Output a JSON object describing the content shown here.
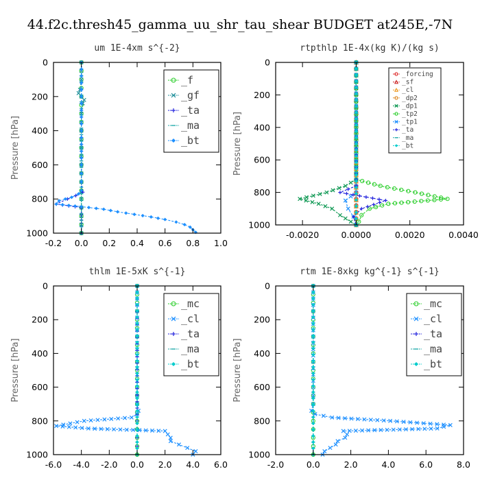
{
  "figure": {
    "title": "44.f2c.thresh45_gamma_uu_shr_tau_shear  BUDGET at245E,-7N"
  },
  "chart_data": [
    {
      "type": "line",
      "title": "um  1E-4xm s^{-2}",
      "xlabel": "",
      "ylabel": "Pressure [hPa]",
      "xlim": [
        -0.2,
        1.0
      ],
      "ylim": [
        1000,
        0
      ],
      "xticks": [
        "-0.2",
        "0.0",
        "0.2",
        "0.4",
        "0.6",
        "0.8",
        "1.0"
      ],
      "xtick_values": [
        -0.2,
        0,
        0.2,
        0.4,
        0.6,
        0.8,
        1.0
      ],
      "yticks": [
        "0",
        "200",
        "400",
        "600",
        "800",
        "1000"
      ],
      "ytick_values": [
        0,
        200,
        400,
        600,
        800,
        1000
      ],
      "legend": {
        "placement": "top-right",
        "size": "large"
      },
      "series": [
        {
          "name": "_f",
          "color": "#22cc22",
          "marker": "circle",
          "y": [
            0,
            100,
            200,
            300,
            400,
            500,
            600,
            700,
            800,
            900,
            1000
          ],
          "x": [
            0,
            0,
            0,
            0,
            0,
            0,
            0,
            0,
            0,
            0,
            0
          ]
        },
        {
          "name": "_gf",
          "color": "#1f8f9a",
          "marker": "x",
          "y": [
            0,
            100,
            160,
            180,
            200,
            220,
            240,
            300,
            400,
            500,
            600,
            700,
            760,
            800,
            850,
            900,
            1000
          ],
          "x": [
            0,
            0,
            -0.01,
            -0.02,
            0,
            0.02,
            0.01,
            0,
            0,
            0,
            0,
            0,
            0,
            0,
            0,
            0,
            0
          ]
        },
        {
          "name": "_ta",
          "color": "#2222dd",
          "marker": "plus",
          "y": [
            0,
            200,
            400,
            600,
            700,
            760,
            780,
            800,
            830,
            850,
            1000
          ],
          "x": [
            0,
            0,
            0,
            0,
            0,
            0.01,
            -0.04,
            -0.1,
            -0.18,
            0,
            0
          ]
        },
        {
          "name": "_ma",
          "color": "#22aaaa",
          "marker": "dash",
          "y": [
            0,
            500,
            1000
          ],
          "x": [
            0,
            0,
            0
          ]
        },
        {
          "name": "_bt",
          "color": "#1e90ff",
          "marker": "diamond",
          "y": [
            0,
            200,
            400,
            600,
            700,
            750,
            770,
            790,
            810,
            830,
            845,
            860,
            875,
            890,
            905,
            920,
            935,
            950,
            965,
            980,
            995
          ],
          "x": [
            0,
            0,
            0,
            0,
            0,
            0,
            -0.02,
            -0.07,
            -0.16,
            -0.18,
            0,
            0.16,
            0.26,
            0.38,
            0.5,
            0.6,
            0.68,
            0.74,
            0.78,
            0.8,
            0.82
          ]
        }
      ]
    },
    {
      "type": "line",
      "title": "rtpthlp  1E-4x(kg K)/(kg s)",
      "xlabel": "",
      "ylabel": "Pressure [hPa]",
      "xlim": [
        -0.003,
        0.004
      ],
      "ylim": [
        1000,
        0
      ],
      "xticks": [
        "-0.0020",
        "0.0000",
        "0.0020",
        "0.0040"
      ],
      "xtick_values": [
        -0.002,
        0,
        0.002,
        0.004
      ],
      "yticks": [
        "0",
        "200",
        "400",
        "600",
        "800",
        "1000"
      ],
      "ytick_values": [
        0,
        200,
        400,
        600,
        800,
        1000
      ],
      "legend": {
        "placement": "top-right",
        "size": "small"
      },
      "series": [
        {
          "name": "_forcing",
          "color": "#dd2222",
          "marker": "circle",
          "y": [
            0,
            200,
            400,
            600,
            800,
            1000
          ],
          "x": [
            0,
            0,
            0,
            0,
            0,
            0
          ]
        },
        {
          "name": "_sf",
          "color": "#cc2222",
          "marker": "triangle",
          "y": [
            0,
            1000
          ],
          "x": [
            0,
            0
          ]
        },
        {
          "name": "_cl",
          "color": "#ee9922",
          "marker": "triangle",
          "y": [
            0,
            1000
          ],
          "x": [
            0,
            0
          ]
        },
        {
          "name": "_dp2",
          "color": "#dd8822",
          "marker": "circle",
          "y": [
            0,
            1000
          ],
          "x": [
            0,
            0
          ]
        },
        {
          "name": "_dp1",
          "color": "#119955",
          "marker": "x",
          "y": [
            0,
            720,
            760,
            800,
            840,
            870,
            900,
            940,
            980,
            1000
          ],
          "x": [
            0,
            0,
            -0.0004,
            -0.0011,
            -0.0021,
            -0.0014,
            -0.0009,
            -0.0006,
            -0.0002,
            0
          ]
        },
        {
          "name": "_tp2",
          "color": "#22cc22",
          "marker": "circle",
          "y": [
            0,
            720,
            760,
            800,
            840,
            870,
            900,
            940,
            980,
            1000
          ],
          "x": [
            0,
            0,
            0.0009,
            0.0022,
            0.0034,
            0.0012,
            0.0005,
            0.0002,
            0.0001,
            0
          ]
        },
        {
          "name": "_tp1",
          "color": "#1e90ff",
          "marker": "x",
          "y": [
            0,
            800,
            850,
            900,
            950,
            1000
          ],
          "x": [
            0,
            0,
            -0.0004,
            -0.0003,
            -0.0001,
            0
          ]
        },
        {
          "name": "_ta",
          "color": "#2222dd",
          "marker": "plus",
          "y": [
            0,
            760,
            800,
            850,
            900,
            950,
            1000
          ],
          "x": [
            0,
            0,
            -0.0006,
            0.0011,
            0.0002,
            -0.0001,
            0
          ]
        },
        {
          "name": "_ma",
          "color": "#22aaaa",
          "marker": "dash",
          "y": [
            0,
            1000
          ],
          "x": [
            0,
            0
          ]
        },
        {
          "name": "_bt",
          "color": "#00cccc",
          "marker": "diamond",
          "y": [
            0,
            1000
          ],
          "x": [
            0,
            0
          ]
        }
      ]
    },
    {
      "type": "line",
      "title": "thlm  1E-5xK s^{-1}",
      "xlabel": "",
      "ylabel": "Pressure [hPa]",
      "xlim": [
        -6.0,
        6.0
      ],
      "ylim": [
        1000,
        0
      ],
      "xticks": [
        "-6.0",
        "-4.0",
        "-2.0",
        "0.0",
        "2.0",
        "4.0",
        "6.0"
      ],
      "xtick_values": [
        -6,
        -4,
        -2,
        0,
        2,
        4,
        6
      ],
      "yticks": [
        "0",
        "200",
        "400",
        "600",
        "800",
        "1000"
      ],
      "ytick_values": [
        0,
        200,
        400,
        600,
        800,
        1000
      ],
      "legend": {
        "placement": "top-right",
        "size": "large"
      },
      "series": [
        {
          "name": "_mc",
          "color": "#22cc22",
          "marker": "circle",
          "y": [
            0,
            100,
            200,
            300,
            400,
            500,
            600,
            700,
            800,
            900,
            1000
          ],
          "x": [
            0,
            0,
            0,
            0,
            0,
            0,
            0,
            0,
            0,
            0,
            0
          ]
        },
        {
          "name": "_cl",
          "color": "#1e90ff",
          "marker": "x",
          "y": [
            0,
            600,
            700,
            740,
            760,
            780,
            800,
            830,
            845,
            860,
            880,
            900,
            920,
            940,
            960,
            980,
            1000
          ],
          "x": [
            0,
            0,
            0,
            0.1,
            0,
            -0.4,
            -3.8,
            -5.8,
            -3.5,
            2.0,
            2.2,
            2.4,
            2.4,
            3.0,
            3.6,
            4.2,
            4.0
          ]
        },
        {
          "name": "_ta",
          "color": "#2222dd",
          "marker": "plus",
          "y": [
            0,
            800,
            900,
            1000
          ],
          "x": [
            0,
            0,
            0,
            0
          ]
        },
        {
          "name": "_ma",
          "color": "#22aaaa",
          "marker": "dash",
          "y": [
            0,
            1000
          ],
          "x": [
            0,
            0
          ]
        },
        {
          "name": "_bt",
          "color": "#00cccc",
          "marker": "diamond",
          "y": [
            0,
            1000
          ],
          "x": [
            0,
            0
          ]
        }
      ]
    },
    {
      "type": "line",
      "title": "rtm  1E-8xkg kg^{-1} s^{-1}",
      "xlabel": "",
      "ylabel": "Pressure [hPa]",
      "xlim": [
        -2.0,
        8.0
      ],
      "ylim": [
        1000,
        0
      ],
      "xticks": [
        "-2.0",
        "0.0",
        "2.0",
        "4.0",
        "6.0",
        "8.0"
      ],
      "xtick_values": [
        -2,
        0,
        2,
        4,
        6,
        8
      ],
      "yticks": [
        "0",
        "200",
        "400",
        "600",
        "800",
        "1000"
      ],
      "ytick_values": [
        0,
        200,
        400,
        600,
        800,
        1000
      ],
      "legend": {
        "placement": "top-right",
        "size": "large"
      },
      "series": [
        {
          "name": "_mc",
          "color": "#22cc22",
          "marker": "circle",
          "y": [
            0,
            100,
            200,
            300,
            400,
            500,
            600,
            700,
            800,
            900,
            1000
          ],
          "x": [
            0,
            0,
            0,
            0,
            0,
            0,
            0,
            0,
            0,
            0,
            0
          ]
        },
        {
          "name": "_cl",
          "color": "#1e90ff",
          "marker": "x",
          "y": [
            0,
            600,
            700,
            740,
            760,
            780,
            800,
            825,
            845,
            860,
            880,
            900,
            920,
            940,
            960,
            980,
            1000
          ],
          "x": [
            0,
            0,
            0,
            -0.1,
            0.1,
            1.0,
            4.1,
            7.3,
            6.6,
            1.6,
            1.8,
            1.7,
            1.3,
            1.2,
            0.9,
            0.6,
            0.5
          ]
        },
        {
          "name": "_ta",
          "color": "#2222dd",
          "marker": "plus",
          "y": [
            0,
            1000
          ],
          "x": [
            0,
            0
          ]
        },
        {
          "name": "_ma",
          "color": "#22aaaa",
          "marker": "dash",
          "y": [
            0,
            1000
          ],
          "x": [
            0,
            0
          ]
        },
        {
          "name": "_bt",
          "color": "#00cccc",
          "marker": "diamond",
          "y": [
            0,
            1000
          ],
          "x": [
            0,
            0
          ]
        }
      ]
    }
  ]
}
